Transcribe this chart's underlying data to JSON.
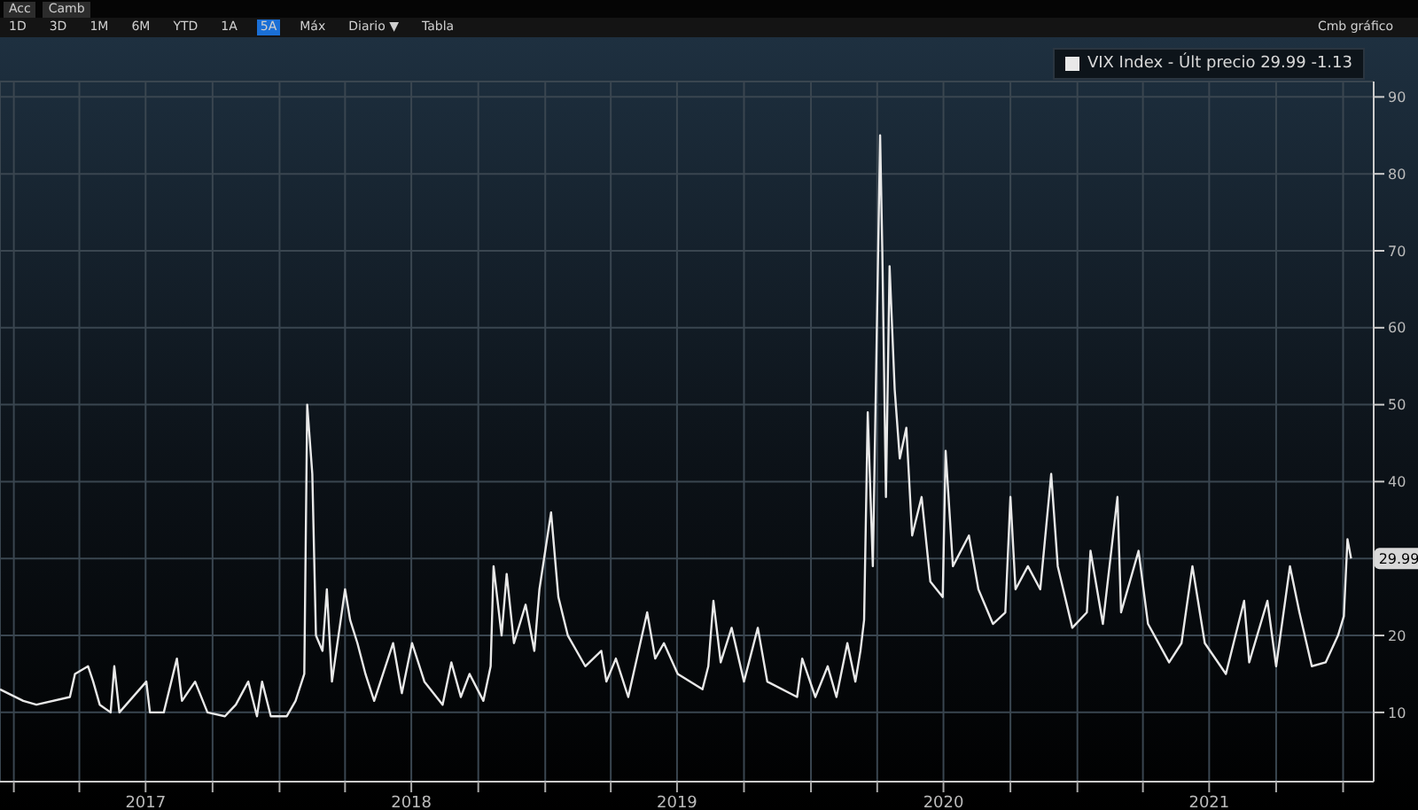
{
  "chart_data": {
    "type": "line",
    "annotations": [
      "Acc",
      "Camb",
      "1D",
      "3D",
      "1M",
      "6M",
      "YTD",
      "1A",
      "5A",
      "Máx",
      "Diario ▼",
      "Tabla",
      "Cmb gráfico",
      {
        "text": "29.99",
        "x": "2022-01-12",
        "y": 29.99
      }
    ],
    "x": [
      "2016-12-13",
      "2017-01-14",
      "2017-02-01",
      "2017-03-19",
      "2017-03-26",
      "2017-04-13",
      "2017-04-20",
      "2017-04-29",
      "2017-05-14",
      "2017-05-19",
      "2017-05-26",
      "2017-07-02",
      "2017-07-07",
      "2017-07-26",
      "2017-08-13",
      "2017-08-20",
      "2017-09-07",
      "2017-09-24",
      "2017-10-18",
      "2017-11-02",
      "2017-11-19",
      "2017-12-01",
      "2017-12-08",
      "2017-12-20",
      "2018-01-11",
      "2018-01-23",
      "2018-02-04",
      "2018-02-08",
      "2018-02-15",
      "2018-02-20",
      "2018-03-01",
      "2018-03-07",
      "2018-03-14",
      "2018-04-01",
      "2018-04-08",
      "2018-04-18",
      "2018-04-29",
      "2018-05-11",
      "2018-06-06",
      "2018-06-18",
      "2018-07-02",
      "2018-07-19",
      "2018-08-13",
      "2018-08-25",
      "2018-09-07",
      "2018-09-19",
      "2018-10-08",
      "2018-10-18",
      "2018-10-22",
      "2018-11-02",
      "2018-11-09",
      "2018-11-19",
      "2018-12-05",
      "2018-12-17",
      "2018-12-24",
      "2019-01-09",
      "2019-01-19",
      "2019-02-01",
      "2019-02-25",
      "2019-03-19",
      "2019-03-26",
      "2019-04-08",
      "2019-04-25",
      "2019-05-21",
      "2019-06-01",
      "2019-06-13",
      "2019-07-02",
      "2019-08-05",
      "2019-08-13",
      "2019-08-20",
      "2019-08-30",
      "2019-09-14",
      "2019-10-01",
      "2019-10-20",
      "2019-11-02",
      "2019-12-13",
      "2019-12-20",
      "2020-01-07",
      "2020-01-24",
      "2020-02-05",
      "2020-02-20",
      "2020-03-02",
      "2020-03-09",
      "2020-03-14",
      "2020-03-19",
      "2020-03-26",
      "2020-04-05",
      "2020-04-08",
      "2020-04-13",
      "2020-04-18",
      "2020-04-25",
      "2020-05-02",
      "2020-05-11",
      "2020-05-19",
      "2020-06-01",
      "2020-06-13",
      "2020-06-30",
      "2020-07-04",
      "2020-07-14",
      "2020-08-05",
      "2020-08-18",
      "2020-09-07",
      "2020-09-24",
      "2020-10-01",
      "2020-10-08",
      "2020-10-25",
      "2020-11-11",
      "2020-11-26",
      "2020-12-05",
      "2020-12-25",
      "2021-01-14",
      "2021-01-19",
      "2021-02-05",
      "2021-02-25",
      "2021-03-02",
      "2021-03-26",
      "2021-04-08",
      "2021-05-07",
      "2021-05-24",
      "2021-06-08",
      "2021-06-25",
      "2021-07-24",
      "2021-08-18",
      "2021-08-25",
      "2021-09-19",
      "2021-10-01",
      "2021-10-20",
      "2021-11-02",
      "2021-11-19",
      "2021-12-08",
      "2021-12-25",
      "2022-01-02",
      "2022-01-07",
      "2022-01-12"
    ],
    "series": [
      {
        "name": "VIX Index - Últ precio 29.99 -1.13",
        "color": "#e8e8e8",
        "values": [
          13,
          11.5,
          11,
          12,
          15,
          16,
          14,
          11,
          10,
          16,
          10,
          14,
          10,
          10,
          17,
          11.5,
          14,
          10,
          9.5,
          11,
          14,
          9.5,
          14,
          9.5,
          9.5,
          11.5,
          15,
          50,
          41,
          20,
          18,
          26,
          14,
          26,
          22,
          19,
          15,
          11.5,
          19,
          12.5,
          19,
          14,
          11,
          16.5,
          12,
          15,
          11.5,
          16,
          29,
          20,
          28,
          19,
          24,
          18,
          26,
          36,
          25,
          20,
          16,
          18,
          14,
          17,
          12,
          23,
          17,
          19,
          15,
          13,
          16,
          24.5,
          16.5,
          21,
          14,
          21,
          14,
          12,
          17,
          12,
          16,
          12,
          19,
          14,
          18,
          22,
          49,
          29,
          85,
          70,
          38,
          68,
          52,
          43,
          47,
          33,
          38,
          27,
          25,
          44,
          29,
          33,
          26,
          21.5,
          23,
          38,
          26,
          29,
          26,
          41,
          29,
          21,
          23,
          31,
          21.5,
          38,
          23,
          31,
          21.5,
          16.5,
          19,
          29,
          19,
          15,
          24.5,
          16.5,
          24.5,
          16,
          29,
          23,
          16,
          16.5,
          20,
          22.5,
          32.5,
          30
        ]
      }
    ],
    "xlim": [
      "2016-12-13",
      "2022-02-12"
    ],
    "xticks": [
      {
        "value": "2017-01-01",
        "label": null
      },
      {
        "value": "2017-04-01",
        "label": null
      },
      {
        "value": "2017-07-01",
        "label": "2017"
      },
      {
        "value": "2017-10-01",
        "label": null
      },
      {
        "value": "2018-01-01",
        "label": null
      },
      {
        "value": "2018-04-01",
        "label": null
      },
      {
        "value": "2018-07-01",
        "label": "2018"
      },
      {
        "value": "2018-10-01",
        "label": null
      },
      {
        "value": "2019-01-01",
        "label": null
      },
      {
        "value": "2019-04-01",
        "label": null
      },
      {
        "value": "2019-07-01",
        "label": "2019"
      },
      {
        "value": "2019-10-01",
        "label": null
      },
      {
        "value": "2020-01-01",
        "label": null
      },
      {
        "value": "2020-04-01",
        "label": null
      },
      {
        "value": "2020-07-01",
        "label": "2020"
      },
      {
        "value": "2020-10-01",
        "label": null
      },
      {
        "value": "2021-01-01",
        "label": null
      },
      {
        "value": "2021-04-01",
        "label": null
      },
      {
        "value": "2021-07-01",
        "label": "2021"
      },
      {
        "value": "2021-10-01",
        "label": null
      },
      {
        "value": "2022-01-01",
        "label": null
      }
    ],
    "ylim": [
      1,
      92
    ],
    "yticks": [
      10,
      20,
      {
        "value": 30,
        "label": null
      },
      40,
      50,
      60,
      70,
      80,
      90
    ],
    "grid": true,
    "legend": "top right"
  }
}
